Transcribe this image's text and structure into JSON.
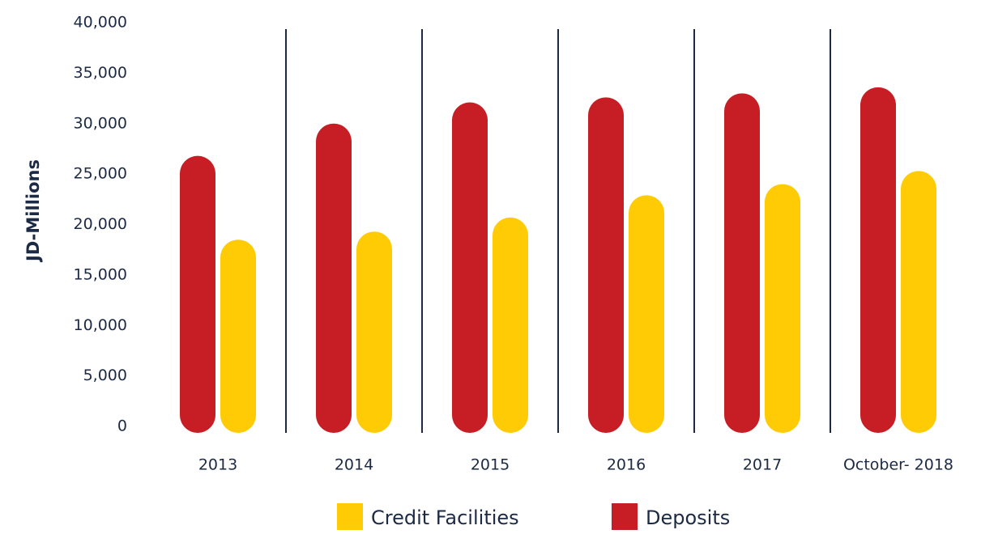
{
  "chart_data": {
    "type": "bar",
    "y_label": "JD-Millions",
    "categories": [
      "2013",
      "2014",
      "2015",
      "2016",
      "2017",
      "October- 2018"
    ],
    "series": [
      {
        "name": "Credit Facilities",
        "color": "#fecb05",
        "values": [
          18500,
          19300,
          20700,
          22900,
          24000,
          25300
        ]
      },
      {
        "name": "Deposits",
        "color": "#c61e24",
        "values": [
          26800,
          30000,
          32100,
          32600,
          33000,
          33600
        ]
      }
    ],
    "ylim": [
      0,
      40000
    ],
    "yticks": [
      0,
      {
        "value": 5000,
        "label": "5,000"
      },
      {
        "value": 10000,
        "label": "10,000"
      },
      {
        "value": 15000,
        "label": "15,000"
      },
      {
        "value": 20000,
        "label": "20,000"
      },
      {
        "value": 25000,
        "label": "25,000"
      },
      {
        "value": 30000,
        "label": "30,000"
      },
      {
        "value": 35000,
        "label": "35,000"
      },
      {
        "value": 40000,
        "label": "40,000"
      }
    ],
    "grid": false
  }
}
